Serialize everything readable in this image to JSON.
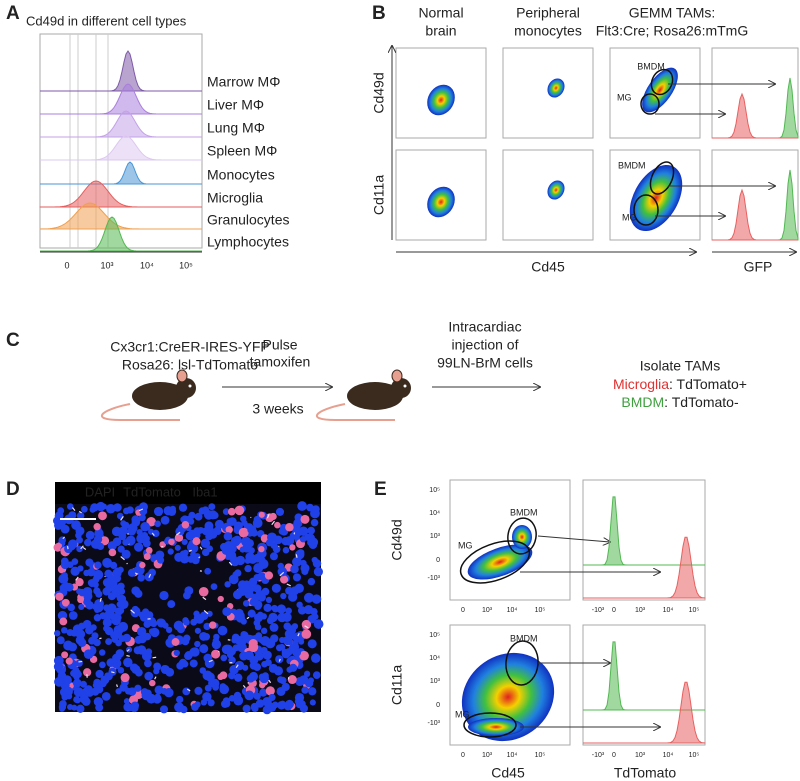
{
  "panel_a": {
    "label": "A",
    "title": "Cd49d in different cell types",
    "cell_types": [
      "Marrow MΦ",
      "Liver MΦ",
      "Lung MΦ",
      "Spleen MΦ",
      "Monocytes",
      "Microglia",
      "Granulocytes",
      "Lymphocytes"
    ],
    "x_ticks": [
      "0",
      "10³",
      "10⁴",
      "10⁵"
    ]
  },
  "panel_b": {
    "label": "B",
    "columns": [
      [
        "Normal",
        "brain"
      ],
      [
        "Peripheral",
        "monocytes"
      ],
      [
        "GEMM TAMs:",
        "Flt3:Cre; Rosa26:mTmG"
      ]
    ],
    "rows": [
      "Cd49d",
      "Cd11a"
    ],
    "gates": [
      "BMDM",
      "MG"
    ],
    "x_label": "Cd45",
    "hist_label": "GFP"
  },
  "panel_c": {
    "label": "C",
    "strain": [
      "Cx3cr1:CreER-IRES-YFP",
      "Rosa26: lsl-TdTomato"
    ],
    "step1": [
      "Pulse",
      "tamoxifen"
    ],
    "duration": "3 weeks",
    "step2": [
      "Intracardiac",
      "injection of",
      "99LN-BrM cells"
    ],
    "result": "Isolate TAMs",
    "microglia": "Microglia",
    "microglia_state": ": TdTomato+",
    "bmdm": "BMDM",
    "bmdm_state": ": TdTomato-"
  },
  "panel_d": {
    "label": "D",
    "stains": [
      "DAPI",
      "TdTomato",
      "Iba1"
    ]
  },
  "panel_e": {
    "label": "E",
    "rows": [
      "Cd49d",
      "Cd11a"
    ],
    "gates": [
      "BMDM",
      "MG"
    ],
    "y_ticks": [
      "10⁵",
      "10⁴",
      "10³",
      "0",
      "-10³"
    ],
    "x_ticks": [
      "0",
      "10³",
      "10⁴",
      "10⁵"
    ],
    "hist_ticks": [
      "-10³",
      "0",
      "10³",
      "10⁴",
      "10⁵"
    ],
    "x_label": "Cd45",
    "hist_label": "TdTomato"
  }
}
